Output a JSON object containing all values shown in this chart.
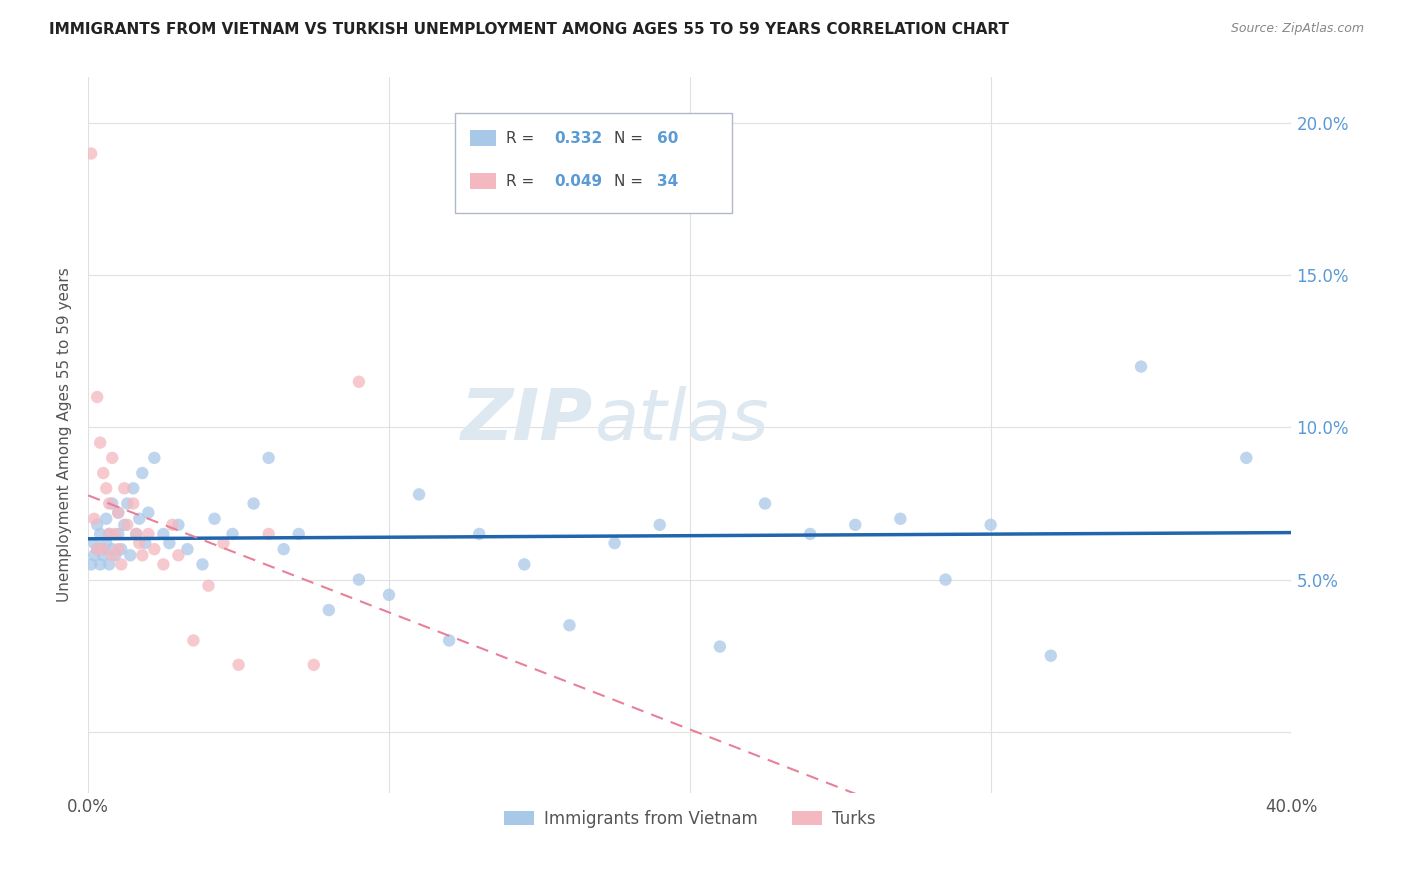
{
  "title": "IMMIGRANTS FROM VIETNAM VS TURKISH UNEMPLOYMENT AMONG AGES 55 TO 59 YEARS CORRELATION CHART",
  "source": "Source: ZipAtlas.com",
  "ylabel": "Unemployment Among Ages 55 to 59 years",
  "xlim": [
    0.0,
    0.4
  ],
  "ylim": [
    -0.02,
    0.215
  ],
  "yticks": [
    0.0,
    0.05,
    0.1,
    0.15,
    0.2
  ],
  "ytick_labels_right": [
    "",
    "5.0%",
    "10.0%",
    "15.0%",
    "20.0%"
  ],
  "xticks": [
    0.0,
    0.1,
    0.2,
    0.3,
    0.4
  ],
  "xtick_labels": [
    "0.0%",
    "",
    "",
    "",
    "40.0%"
  ],
  "legend_R1": "0.332",
  "legend_N1": "60",
  "legend_R2": "0.049",
  "legend_N2": "34",
  "legend_label1": "Immigrants from Vietnam",
  "legend_label2": "Turks",
  "vietnam_scatter_x": [
    0.001,
    0.002,
    0.002,
    0.003,
    0.003,
    0.004,
    0.004,
    0.005,
    0.005,
    0.006,
    0.006,
    0.007,
    0.007,
    0.008,
    0.008,
    0.009,
    0.01,
    0.01,
    0.011,
    0.012,
    0.013,
    0.014,
    0.015,
    0.016,
    0.017,
    0.018,
    0.019,
    0.02,
    0.022,
    0.025,
    0.027,
    0.03,
    0.033,
    0.038,
    0.042,
    0.048,
    0.055,
    0.06,
    0.065,
    0.07,
    0.08,
    0.09,
    0.1,
    0.11,
    0.12,
    0.13,
    0.145,
    0.16,
    0.175,
    0.19,
    0.21,
    0.225,
    0.24,
    0.255,
    0.27,
    0.285,
    0.3,
    0.32,
    0.35,
    0.385
  ],
  "vietnam_scatter_y": [
    0.055,
    0.062,
    0.058,
    0.06,
    0.068,
    0.055,
    0.065,
    0.06,
    0.058,
    0.062,
    0.07,
    0.055,
    0.065,
    0.06,
    0.075,
    0.058,
    0.065,
    0.072,
    0.06,
    0.068,
    0.075,
    0.058,
    0.08,
    0.065,
    0.07,
    0.085,
    0.062,
    0.072,
    0.09,
    0.065,
    0.062,
    0.068,
    0.06,
    0.055,
    0.07,
    0.065,
    0.075,
    0.09,
    0.06,
    0.065,
    0.04,
    0.05,
    0.045,
    0.078,
    0.03,
    0.065,
    0.055,
    0.035,
    0.062,
    0.068,
    0.028,
    0.075,
    0.065,
    0.068,
    0.07,
    0.05,
    0.068,
    0.025,
    0.12,
    0.09
  ],
  "turks_scatter_x": [
    0.001,
    0.002,
    0.003,
    0.003,
    0.004,
    0.005,
    0.005,
    0.006,
    0.007,
    0.007,
    0.008,
    0.008,
    0.009,
    0.01,
    0.01,
    0.011,
    0.012,
    0.013,
    0.015,
    0.016,
    0.017,
    0.018,
    0.02,
    0.022,
    0.025,
    0.028,
    0.03,
    0.035,
    0.04,
    0.045,
    0.05,
    0.06,
    0.075,
    0.09
  ],
  "turks_scatter_y": [
    0.19,
    0.07,
    0.11,
    0.06,
    0.095,
    0.085,
    0.06,
    0.08,
    0.075,
    0.065,
    0.09,
    0.058,
    0.065,
    0.072,
    0.06,
    0.055,
    0.08,
    0.068,
    0.075,
    0.065,
    0.062,
    0.058,
    0.065,
    0.06,
    0.055,
    0.068,
    0.058,
    0.03,
    0.048,
    0.062,
    0.022,
    0.065,
    0.022,
    0.115
  ],
  "vietnam_color": "#a8c8e8",
  "turks_color": "#f4b8c0",
  "vietnam_line_color": "#2166ac",
  "turks_line_color": "#e88098",
  "watermark_zip": "ZIP",
  "watermark_atlas": "atlas",
  "background_color": "#ffffff",
  "grid_color": "#e0e0e0"
}
